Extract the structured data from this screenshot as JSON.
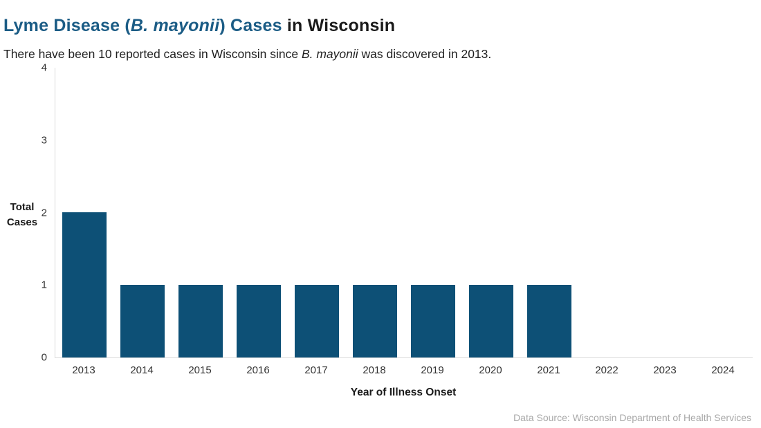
{
  "title": {
    "part1": "Lyme Disease (",
    "italic": "B. mayonii",
    "part2": ") Cases",
    "part3": " in Wisconsin"
  },
  "subtitle": {
    "part1": "There have been 10 reported cases in Wisconsin since ",
    "italic": "B. mayonii",
    "part2": " was discovered in 2013."
  },
  "chart_data": {
    "type": "bar",
    "title": "Lyme Disease (B. mayonii) Cases in Wisconsin",
    "subtitle": "There have been 10 reported cases in Wisconsin since B. mayonii was discovered in 2013.",
    "categories": [
      "2013",
      "2014",
      "2015",
      "2016",
      "2017",
      "2018",
      "2019",
      "2020",
      "2021",
      "2022",
      "2023",
      "2024"
    ],
    "values": [
      2,
      1,
      1,
      1,
      1,
      1,
      1,
      1,
      1,
      0,
      0,
      0
    ],
    "total_cases_noted": 10,
    "xlabel": "Year of Illness Onset",
    "ylabel": "Total Cases",
    "ylim": [
      0,
      4
    ],
    "yticks": [
      0,
      1,
      2,
      3,
      4
    ],
    "grid": false,
    "legend": false,
    "bar_color": "#0d5076",
    "axis_color": "#d9d9d9"
  },
  "colors": {
    "title_accent": "#1b5c85",
    "title_dark": "#1a1a1a",
    "tick_text": "#333333",
    "footer_text": "#a8a8a8"
  },
  "footer": {
    "text": "Data Source: Wisconsin Department of Health Services"
  }
}
